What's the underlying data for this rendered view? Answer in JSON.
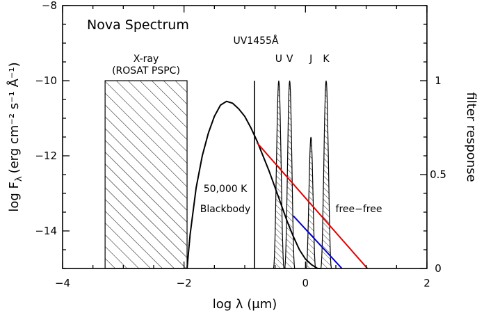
{
  "chart_data": {
    "type": "line",
    "title": "Nova Spectrum",
    "xlabel": "log λ (μm)",
    "ylabel": "log F",
    "ylabel_sub": "λ",
    "ylabel_units": "(erg cm⁻² s⁻¹ Å⁻¹)",
    "y2label": "filter response",
    "xlim": [
      -4,
      2
    ],
    "ylim": [
      -15,
      -8
    ],
    "y2lim": [
      0,
      1.4
    ],
    "x_ticks": [
      -4,
      -2,
      0,
      2
    ],
    "x_tick_labels": [
      "−4",
      "−2",
      "0",
      "2"
    ],
    "y_ticks": [
      -8,
      -10,
      -12,
      -14
    ],
    "y_tick_labels": [
      "−8",
      "−10",
      "−12",
      "−14"
    ],
    "y2_ticks": [
      0,
      0.5,
      1
    ],
    "y2_tick_labels": [
      "0",
      "0.5",
      "1"
    ],
    "xray_region": {
      "x": [
        -3.3,
        -1.95
      ],
      "y": [
        -15,
        -10
      ],
      "label_line1": "X-ray",
      "label_line2": "(ROSAT PSPC)"
    },
    "uv_line": {
      "x": -0.84,
      "y": [
        -15,
        -10
      ],
      "label": "UV1455Å"
    },
    "filters": [
      {
        "name": "U",
        "center": -0.44,
        "halfwidth": 0.09,
        "peak": 1.0
      },
      {
        "name": "V",
        "center": -0.26,
        "halfwidth": 0.085,
        "peak": 1.0
      },
      {
        "name": "J",
        "center": 0.09,
        "halfwidth": 0.08,
        "peak": 0.7
      },
      {
        "name": "K",
        "center": 0.34,
        "halfwidth": 0.09,
        "peak": 1.0
      }
    ],
    "blackbody": {
      "label_line1": "50,000 K",
      "label_line2": "Blackbody",
      "x": [
        -1.95,
        -1.9,
        -1.8,
        -1.7,
        -1.6,
        -1.5,
        -1.4,
        -1.3,
        -1.2,
        -1.1,
        -1.0,
        -0.9,
        -0.8,
        -0.7,
        -0.6,
        -0.5,
        -0.4,
        -0.3,
        -0.2,
        -0.1,
        0.0,
        0.1,
        0.2,
        0.25
      ],
      "y": [
        -15.0,
        -14.1,
        -12.85,
        -12.0,
        -11.4,
        -10.95,
        -10.65,
        -10.55,
        -10.6,
        -10.75,
        -10.95,
        -11.25,
        -11.6,
        -12.0,
        -12.4,
        -12.85,
        -13.3,
        -13.75,
        -14.15,
        -14.5,
        -14.75,
        -14.9,
        -15.0,
        -15.0
      ]
    },
    "free_free": {
      "label": "free−free",
      "series": [
        {
          "color": "#e00000",
          "x": [
            -0.8,
            1.02
          ],
          "y": [
            -11.65,
            -15.0
          ]
        },
        {
          "color": "#0000cc",
          "x": [
            -0.2,
            0.6
          ],
          "y": [
            -13.6,
            -15.0
          ]
        }
      ]
    }
  }
}
